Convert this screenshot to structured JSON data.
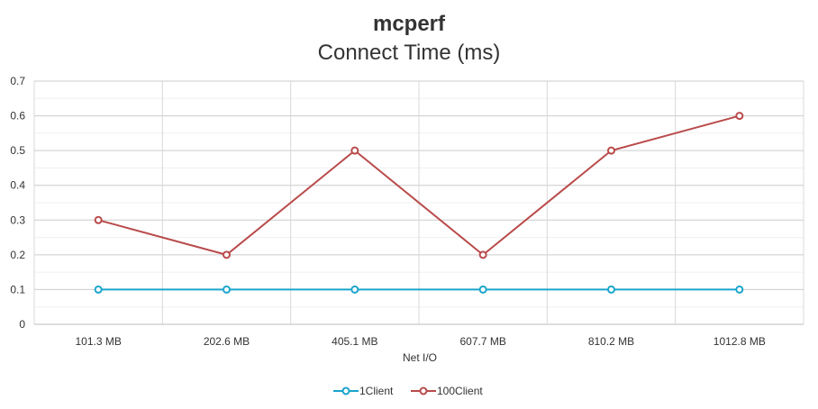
{
  "chart_data": {
    "type": "line",
    "title": "mcperf",
    "subtitle": "Connect Time (ms)",
    "xlabel": "Net I/O",
    "ylabel": "",
    "categories": [
      "101.3 MB",
      "202.6 MB",
      "405.1 MB",
      "607.7 MB",
      "810.2 MB",
      "1012.8 MB"
    ],
    "ylim": [
      0,
      0.7
    ],
    "yticks": [
      "0",
      "0.1",
      "0.2",
      "0.3",
      "0.4",
      "0.5",
      "0.6",
      "0.7"
    ],
    "grid": true,
    "legend_position": "bottom",
    "series": [
      {
        "name": "1Client",
        "color": "#1aa5cc",
        "values": [
          0.1,
          0.1,
          0.1,
          0.1,
          0.1,
          0.1
        ]
      },
      {
        "name": "100Client",
        "color": "#b94a4a",
        "values": [
          0.3,
          0.2,
          0.5,
          0.2,
          0.5,
          0.6
        ]
      }
    ]
  }
}
